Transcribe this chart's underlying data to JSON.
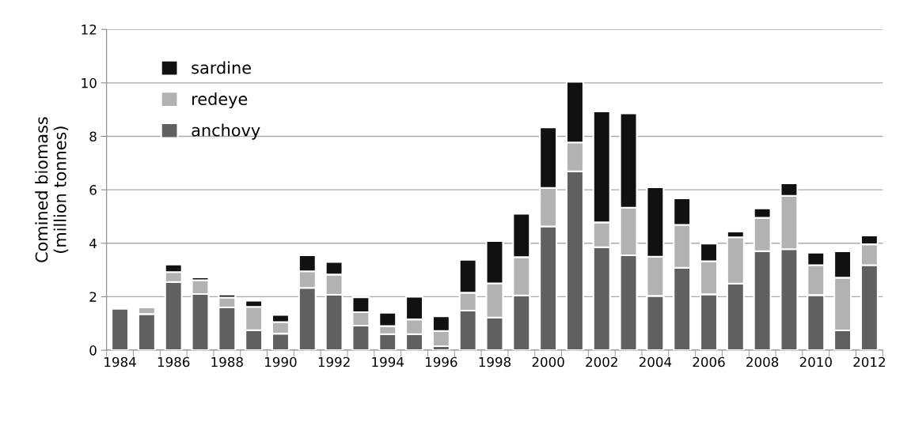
{
  "chart_data": {
    "type": "bar",
    "stacked": true,
    "ylabel": "Comined biomass\n(million tonnes)",
    "categories": [
      "1984",
      null,
      "1986",
      null,
      "1988",
      null,
      "1990",
      null,
      "1992",
      null,
      "1994",
      null,
      "1996",
      null,
      "1998",
      null,
      "2000",
      null,
      "2002",
      null,
      "2004",
      null,
      "2006",
      null,
      "2008",
      null,
      "2010",
      null,
      "2012"
    ],
    "series": [
      {
        "name": "anchovy",
        "color": "#606060",
        "values": [
          1.55,
          1.35,
          2.55,
          2.1,
          1.6,
          0.75,
          0.62,
          2.33,
          2.07,
          0.92,
          0.6,
          0.6,
          0.15,
          1.48,
          1.22,
          2.05,
          4.63,
          6.69,
          3.85,
          3.55,
          2.03,
          3.08,
          2.09,
          2.49,
          3.7,
          3.78,
          2.06,
          0.74,
          3.18
        ]
      },
      {
        "name": "redeye",
        "color": "#b2b2b2",
        "values": [
          null,
          0.25,
          0.37,
          0.52,
          0.37,
          0.87,
          0.43,
          0.62,
          0.76,
          0.5,
          0.3,
          0.55,
          0.57,
          0.67,
          1.28,
          1.43,
          1.44,
          1.08,
          0.93,
          1.78,
          1.47,
          1.61,
          1.24,
          1.73,
          1.25,
          1.99,
          1.12,
          1.97,
          0.78
        ]
      },
      {
        "name": "sardine",
        "color": "#111111",
        "values": [
          null,
          null,
          0.28,
          0.1,
          0.11,
          0.23,
          0.27,
          0.6,
          0.47,
          0.56,
          0.5,
          0.85,
          0.55,
          1.23,
          1.58,
          1.62,
          2.26,
          2.27,
          4.15,
          3.53,
          2.59,
          0.99,
          0.66,
          0.22,
          0.35,
          0.47,
          0.47,
          0.99,
          0.33
        ]
      }
    ],
    "ylim": [
      0,
      12
    ],
    "yticks": [
      0,
      2,
      4,
      6,
      8,
      10,
      12
    ],
    "grid": "y",
    "legend": "top left"
  }
}
